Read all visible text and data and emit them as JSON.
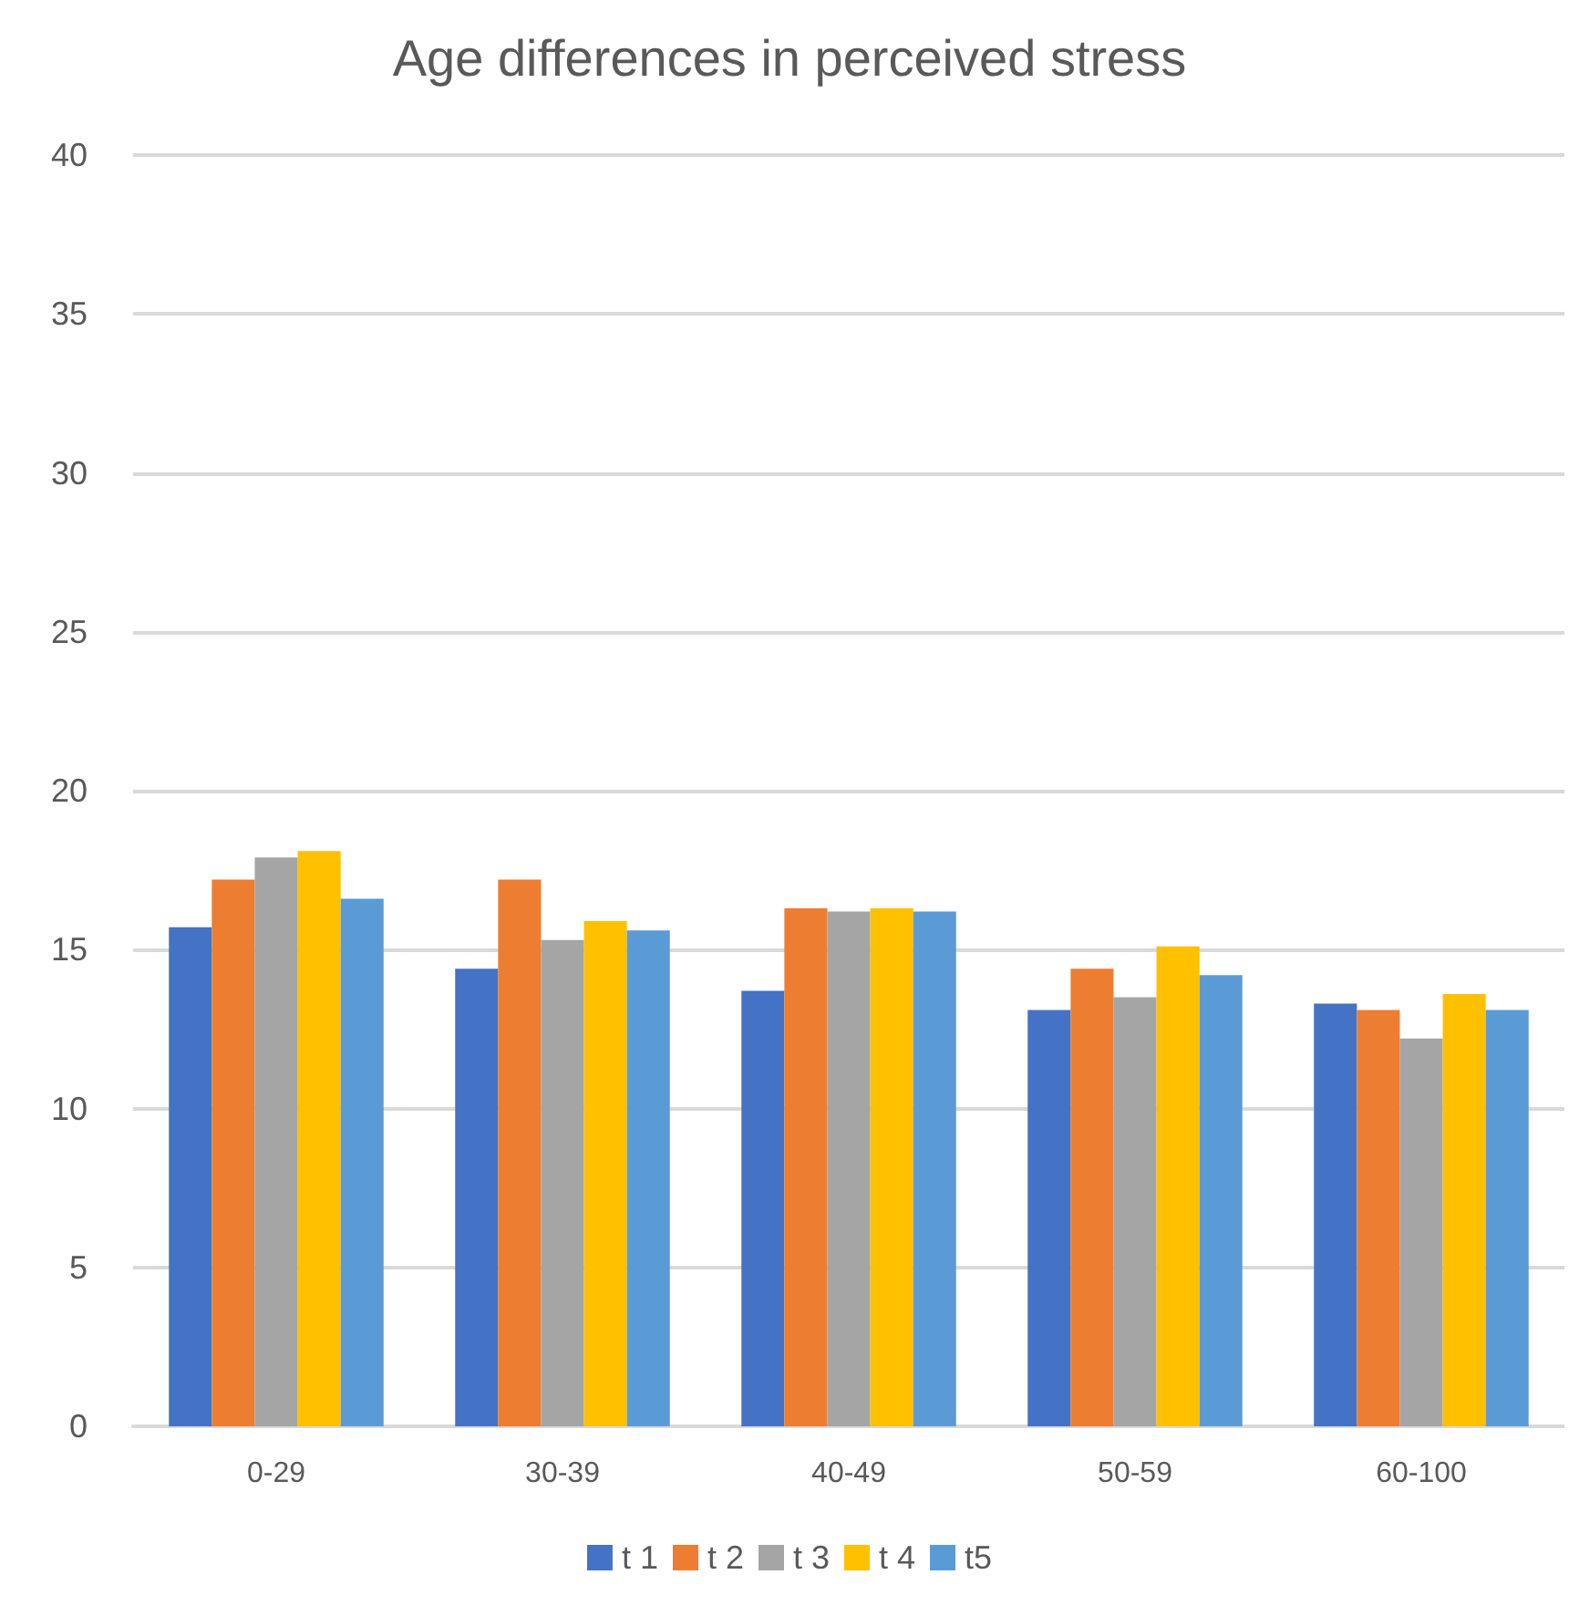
{
  "chart_data": {
    "type": "bar",
    "title": "Age differences in perceived stress",
    "categories": [
      "0-29",
      "30-39",
      "40-49",
      "50-59",
      "60-100"
    ],
    "series": [
      {
        "name": "t 1",
        "color": "#4472c4",
        "values": [
          15.7,
          14.4,
          13.7,
          13.1,
          13.3
        ]
      },
      {
        "name": "t 2",
        "color": "#ed7d31",
        "values": [
          17.2,
          17.2,
          16.3,
          14.4,
          13.1
        ]
      },
      {
        "name": "t 3",
        "color": "#a5a5a5",
        "values": [
          17.9,
          15.3,
          16.2,
          13.5,
          12.2
        ]
      },
      {
        "name": "t 4",
        "color": "#ffc000",
        "values": [
          18.1,
          15.9,
          16.3,
          15.1,
          13.6
        ]
      },
      {
        "name": "t5",
        "color": "#5b9bd5",
        "values": [
          16.6,
          15.6,
          16.2,
          14.2,
          13.1
        ]
      }
    ],
    "ylim": [
      0,
      40
    ],
    "yticks": [
      0,
      5,
      10,
      15,
      20,
      25,
      30,
      35,
      40
    ],
    "grid": "y",
    "legend": "bottom"
  }
}
